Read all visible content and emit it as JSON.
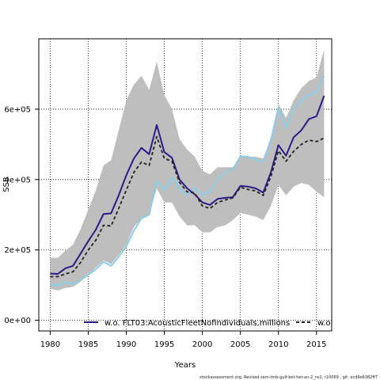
{
  "chart_data": {
    "type": "line",
    "xlabel": "Years",
    "ylabel": "SSB",
    "xlim": [
      1978.5,
      2017
    ],
    "ylim": [
      -30000,
      800000
    ],
    "x_ticks": [
      1980,
      1985,
      1990,
      1995,
      2000,
      2005,
      2010,
      2015
    ],
    "y_ticks": [
      0,
      200000,
      400000,
      600000
    ],
    "y_tick_labels": [
      "0e+00",
      "2e+05",
      "4e+05",
      "6e+05"
    ],
    "grid": true,
    "legend_position": "bottom",
    "x": [
      1980,
      1981,
      1982,
      1983,
      1984,
      1985,
      1986,
      1987,
      1988,
      1989,
      1990,
      1991,
      1992,
      1993,
      1994,
      1995,
      1996,
      1997,
      1998,
      1999,
      2000,
      2001,
      2002,
      2003,
      2004,
      2005,
      2006,
      2007,
      2008,
      2009,
      2010,
      2011,
      2012,
      2013,
      2014,
      2015,
      2016
    ],
    "band": {
      "lower": [
        90000,
        85000,
        92000,
        95000,
        110000,
        130000,
        150000,
        170000,
        160000,
        185000,
        215000,
        265000,
        290000,
        300000,
        375000,
        335000,
        335000,
        295000,
        270000,
        270000,
        250000,
        250000,
        265000,
        270000,
        285000,
        305000,
        300000,
        295000,
        285000,
        325000,
        385000,
        355000,
        380000,
        390000,
        385000,
        365000,
        350000
      ],
      "upper": [
        178000,
        178000,
        198000,
        215000,
        260000,
        315000,
        370000,
        440000,
        455000,
        540000,
        625000,
        670000,
        695000,
        655000,
        735000,
        640000,
        600000,
        515000,
        485000,
        465000,
        425000,
        415000,
        435000,
        435000,
        435000,
        465000,
        465000,
        465000,
        460000,
        520000,
        615000,
        575000,
        625000,
        660000,
        680000,
        690000,
        770000
      ],
      "color": "#bebebe"
    },
    "series": [
      {
        "name": "w.o. FLT03:AcousticFleetNofindividuals,millions",
        "color": "#2e1a87",
        "style": "solid",
        "values": [
          133000,
          132000,
          148000,
          155000,
          190000,
          225000,
          258000,
          302000,
          304000,
          355000,
          412000,
          460000,
          490000,
          472000,
          555000,
          478000,
          462000,
          400000,
          375000,
          358000,
          335000,
          328000,
          345000,
          348000,
          350000,
          382000,
          380000,
          375000,
          363000,
          420000,
          498000,
          468000,
          520000,
          540000,
          572000,
          580000,
          638000
        ]
      },
      {
        "name": "w.o.",
        "color": "#222222",
        "style": "dashed",
        "values": [
          124000,
          124000,
          132000,
          138000,
          165000,
          200000,
          228000,
          270000,
          268000,
          318000,
          370000,
          420000,
          450000,
          440000,
          522000,
          460000,
          452000,
          392000,
          365000,
          362000,
          325000,
          318000,
          335000,
          342000,
          348000,
          378000,
          372000,
          368000,
          355000,
          408000,
          482000,
          452000,
          480000,
          500000,
          512000,
          508000,
          518000
        ]
      },
      {
        "name": "",
        "color": "#87ceeb",
        "style": "solid",
        "values": [
          102000,
          100000,
          108000,
          102000,
          115000,
          130000,
          145000,
          166000,
          155000,
          180000,
          210000,
          255000,
          290000,
          300000,
          395000,
          370000,
          405000,
          375000,
          355000,
          375000,
          355000,
          368000,
          398000,
          420000,
          430000,
          466000,
          465000,
          457000,
          450000,
          510000,
          605000,
          548000,
          600000,
          625000,
          640000,
          650000,
          695000
        ]
      }
    ]
  },
  "footer": "stockassessment.org, Revised  sam-tmb-gulf-bot-her-an-2_ns2, r10069 , git: ecd9e6382ff7"
}
